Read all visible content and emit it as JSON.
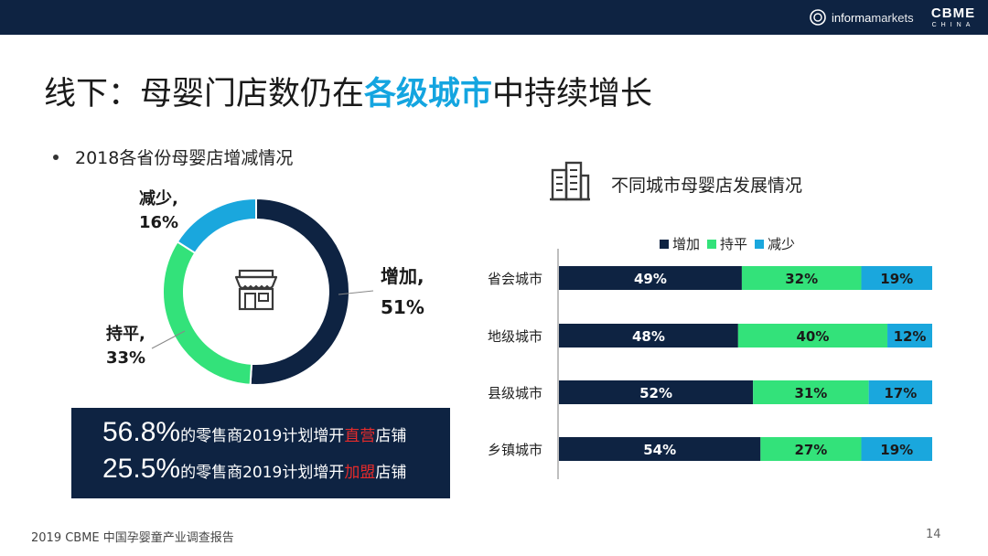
{
  "header": {
    "brand_informa": "informa",
    "brand_markets": "markets",
    "brand_cbme": "CBME",
    "brand_china": "CHINA"
  },
  "title": {
    "before": "线下：母婴门店数仍在",
    "highlight": "各级城市",
    "after": "中持续增长"
  },
  "left": {
    "subtitle": "2018各省份母婴店增减情况",
    "labels": {
      "decrease": [
        "减少,",
        "16%"
      ],
      "flat": [
        "持平,",
        "33%"
      ],
      "increase": [
        "增加,",
        "51%"
      ]
    }
  },
  "summary": {
    "line1": {
      "pct": "56.8%",
      "text": "的零售商2019计划增开",
      "emph": "直营",
      "tail": "店铺"
    },
    "line2": {
      "pct": "25.5%",
      "text": "的零售商2019计划增开",
      "emph": "加盟",
      "tail": "店铺"
    }
  },
  "right": {
    "title": "不同城市母婴店发展情况"
  },
  "colors": {
    "navy": "#0e2342",
    "green": "#33e27a",
    "blue": "#1aa7dd",
    "title_highlight": "#14a5e0",
    "emph_red": "#e42b2b"
  },
  "chart_data": [
    {
      "type": "pie",
      "variant": "donut",
      "title": "2018各省份母婴店增减情况",
      "categories": [
        "增加",
        "持平",
        "减少"
      ],
      "values": [
        51,
        33,
        16
      ],
      "unit": "%",
      "colors": [
        "#0e2342",
        "#33e27a",
        "#1aa7dd"
      ]
    },
    {
      "type": "bar",
      "orientation": "horizontal",
      "stacked": true,
      "title": "不同城市母婴店发展情况",
      "categories": [
        "省会城市",
        "地级城市",
        "县级城市",
        "乡镇城市"
      ],
      "series": [
        {
          "name": "增加",
          "values": [
            49,
            48,
            52,
            54
          ],
          "color": "#0e2342"
        },
        {
          "name": "持平",
          "values": [
            32,
            40,
            31,
            27
          ],
          "color": "#33e27a"
        },
        {
          "name": "减少",
          "values": [
            19,
            12,
            17,
            19
          ],
          "color": "#1aa7dd"
        }
      ],
      "unit": "%",
      "xlim": [
        0,
        100
      ],
      "legend": "top"
    }
  ],
  "footer": {
    "source": "2019 CBME 中国孕婴童产业调查报告",
    "page": "14"
  }
}
